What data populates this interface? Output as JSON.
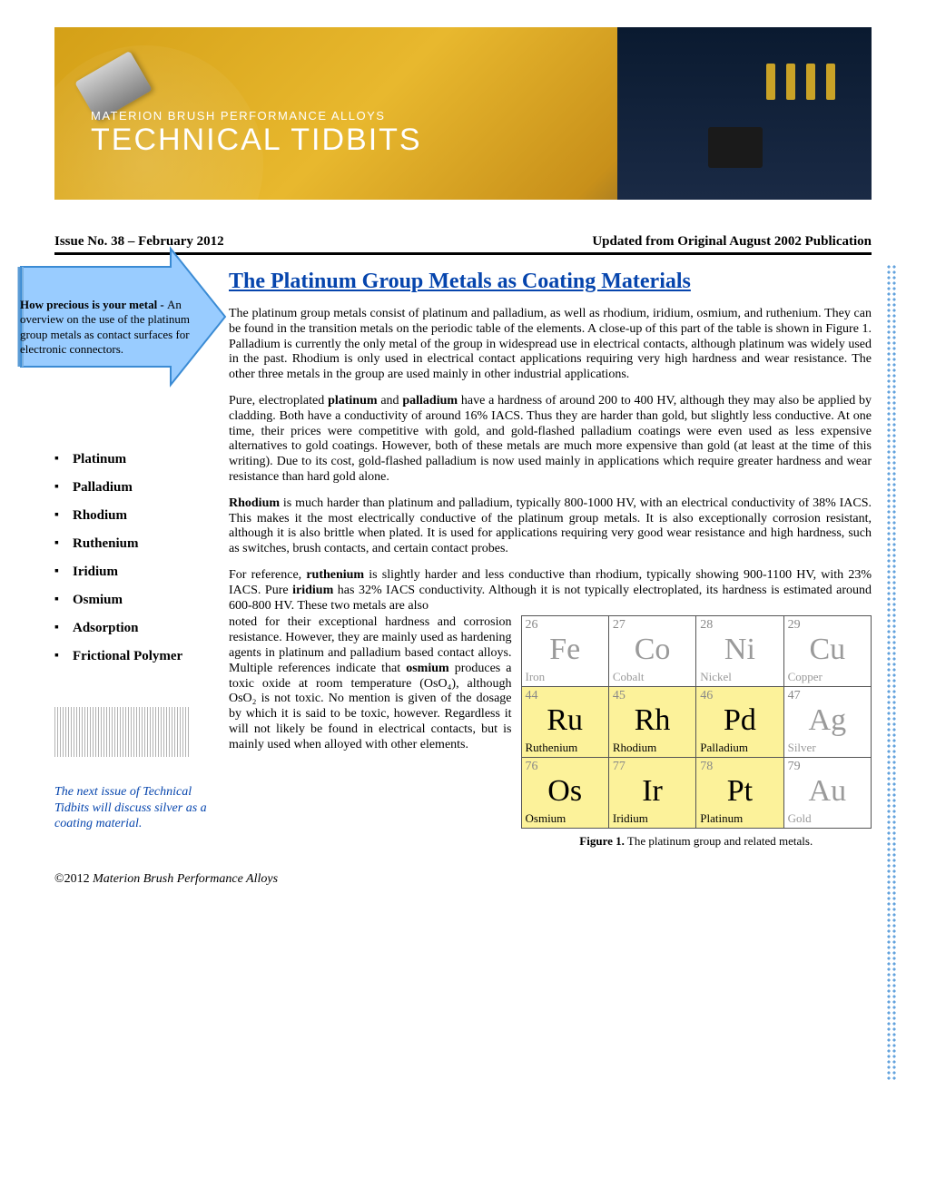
{
  "banner": {
    "subtitle": "MATERION BRUSH PERFORMANCE ALLOYS",
    "title": "TECHNICAL TIDBITS"
  },
  "issue": {
    "left": "Issue No. 38 – February 2012",
    "right": "Updated from Original August 2002 Publication"
  },
  "callout": {
    "lead": "How precious is your metal - ",
    "body": "An overview on the use of the platinum group metals as contact surfaces for electronic connectors."
  },
  "sidebar_items": [
    "Platinum",
    "Palladium",
    "Rhodium",
    "Ruthenium",
    "Iridium",
    "Osmium",
    "Adsorption",
    "Frictional Polymer"
  ],
  "next_issue": "The next issue of Technical Tidbits will discuss silver as a coating material.",
  "title": "The Platinum Group Metals as Coating Materials",
  "p1": "The platinum group metals consist of platinum and palladium, as well as rhodium, iridium, osmium, and ruthenium.  They can be found in the transition metals on the periodic table of the elements.  A close-up of this part of the table is shown in Figure 1.  Palladium is currently the only metal of the group in widespread use in electrical contacts, although platinum was widely used in the past.  Rhodium is only used in electrical contact applications requiring very high hardness and wear resistance.  The other three metals in the group are used mainly in other industrial applications.",
  "p2a": "Pure, electroplated ",
  "p2b": "platinum",
  "p2c": " and ",
  "p2d": "palladium",
  "p2e": " have a hardness of around 200 to 400 HV, although they may also be applied by cladding.  Both have a conductivity of around 16% IACS.  Thus they are harder than gold, but slightly less conductive.  At one time, their prices were competitive with gold, and gold-flashed palladium coatings were even used as less expensive alternatives to gold coatings. However, both of these metals are much more expensive than gold (at least at the time of this writing).  Due to its cost, gold-flashed palladium is now used mainly in applications which require greater hardness and wear resistance than hard gold alone.",
  "p3a": "Rhodium",
  "p3b": " is much harder than platinum and palladium, typically 800-1000 HV, with an electrical conductivity of 38% IACS. This makes it the most electrically conductive of the platinum group metals.  It is also exceptionally corrosion resistant, although it is also brittle when plated.  It is used for applications requiring very good wear resistance and high hardness, such as switches, brush contacts, and certain contact probes.",
  "p4a": "For reference, ",
  "p4b": "ruthenium",
  "p4c": " is slightly harder and less conductive than rhodium, typically showing 900-1100 HV, with 23% IACS.  Pure ",
  "p4d": "iridium",
  "p4e": " has 32% IACS conductivity.  Although it is not typically electroplated, its hardness is estimated around 600-800 HV.  These two metals are also",
  "p5a": "noted for their exceptional hardness and corrosion resistance. However, they are mainly used as hardening agents in platinum and palladium based contact alloys. Multiple references indicate that ",
  "p5b": "osmium",
  "p5c": " produces a toxic oxide at room temperature (OsO₄), although OsO₂ is not toxic.  No mention is given of the dosage by which it is said to be toxic, however. Regardless it will not likely be found in electrical contacts, but is mainly used when alloyed with other elements.",
  "table": {
    "rows": [
      [
        {
          "n": "26",
          "s": "Fe",
          "e": "Iron",
          "style": "gray",
          "hl": false
        },
        {
          "n": "27",
          "s": "Co",
          "e": "Cobalt",
          "style": "gray",
          "hl": false
        },
        {
          "n": "28",
          "s": "Ni",
          "e": "Nickel",
          "style": "gray",
          "hl": false
        },
        {
          "n": "29",
          "s": "Cu",
          "e": "Copper",
          "style": "gray",
          "hl": false
        }
      ],
      [
        {
          "n": "44",
          "s": "Ru",
          "e": "Ruthenium",
          "style": "black",
          "hl": true
        },
        {
          "n": "45",
          "s": "Rh",
          "e": "Rhodium",
          "style": "black",
          "hl": true
        },
        {
          "n": "46",
          "s": "Pd",
          "e": "Palladium",
          "style": "black",
          "hl": true
        },
        {
          "n": "47",
          "s": "Ag",
          "e": "Silver",
          "style": "gray",
          "hl": false
        }
      ],
      [
        {
          "n": "76",
          "s": "Os",
          "e": "Osmium",
          "style": "black",
          "hl": true
        },
        {
          "n": "77",
          "s": "Ir",
          "e": "Iridium",
          "style": "black",
          "hl": true
        },
        {
          "n": "78",
          "s": "Pt",
          "e": "Platinum",
          "style": "black",
          "hl": true
        },
        {
          "n": "79",
          "s": "Au",
          "e": "Gold",
          "style": "gray",
          "hl": false
        }
      ]
    ],
    "caption_b": "Figure 1.",
    "caption": "  The platinum group and related metals."
  },
  "footer_a": "©2012 ",
  "footer_b": "Materion Brush Performance Alloys",
  "colors": {
    "link": "#0645ad",
    "highlight": "#fcf29a",
    "arrow_fill": "#99ccff",
    "arrow_stroke": "#3b8bd4"
  }
}
